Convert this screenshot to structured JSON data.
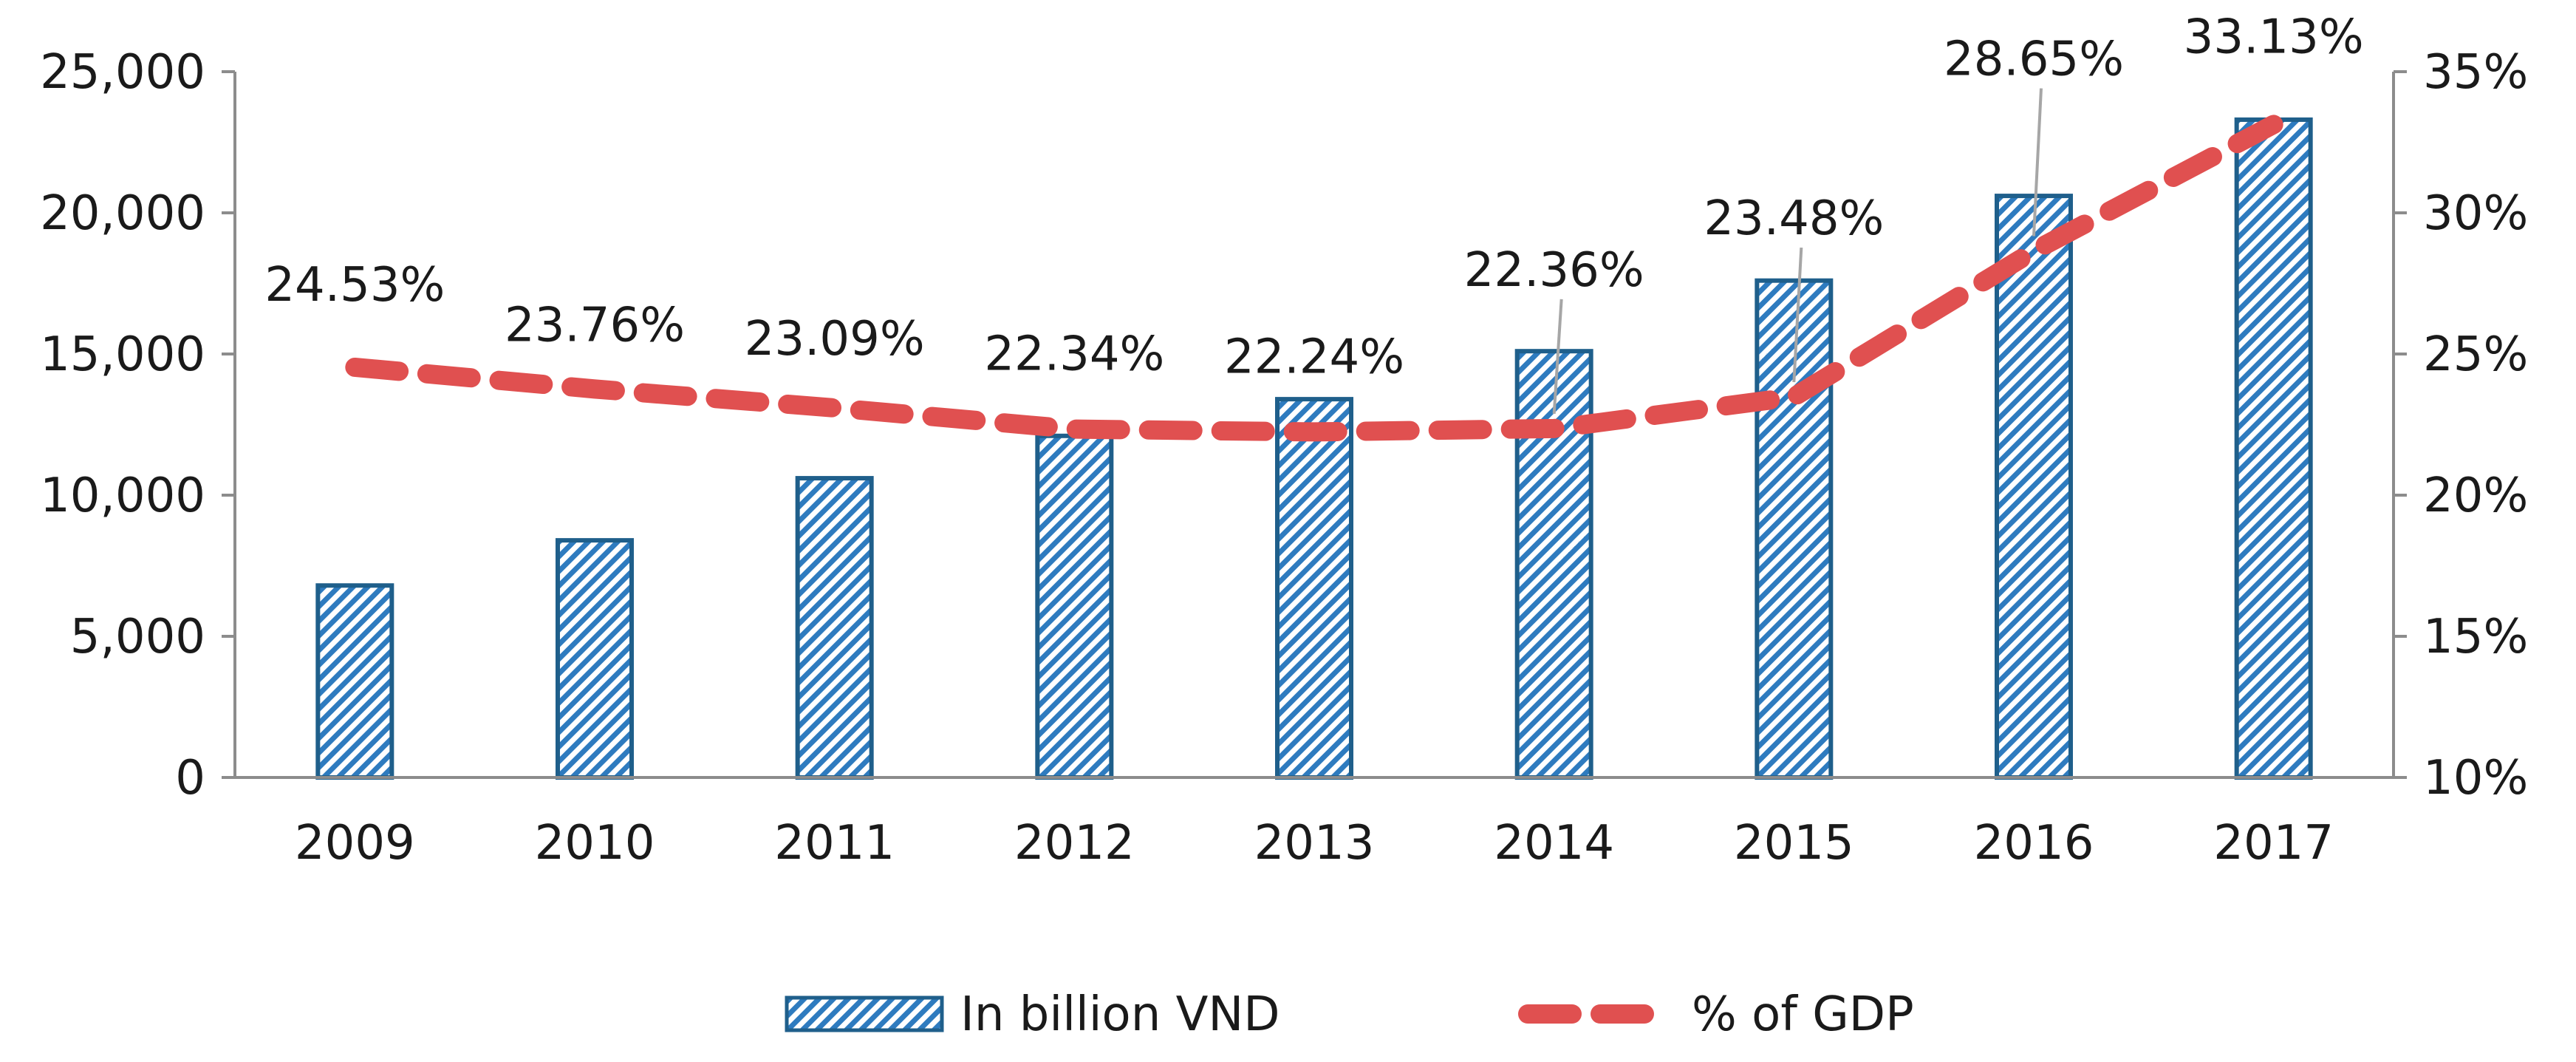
{
  "chart_data": {
    "type": "bar+line",
    "categories": [
      "2009",
      "2010",
      "2011",
      "2012",
      "2013",
      "2014",
      "2015",
      "2016",
      "2017"
    ],
    "series": [
      {
        "name": "In billion VND",
        "type": "bar",
        "axis": "left",
        "values": [
          6800,
          8400,
          10600,
          12100,
          13400,
          15100,
          17600,
          20600,
          23300
        ]
      },
      {
        "name": "% of GDP",
        "type": "line",
        "axis": "right",
        "values": [
          24.53,
          23.76,
          23.09,
          22.34,
          22.24,
          22.36,
          23.48,
          28.65,
          33.13
        ],
        "data_labels": [
          "24.53%",
          "23.76%",
          "23.09%",
          "22.34%",
          "22.24%",
          "22.36%",
          "23.48%",
          "28.65%",
          "33.13%"
        ]
      }
    ],
    "y_left": {
      "ylim": [
        0,
        25000
      ],
      "ticks": [
        0,
        5000,
        10000,
        15000,
        20000,
        25000
      ],
      "tick_labels": [
        "0",
        "5,000",
        "10,000",
        "15,000",
        "20,000",
        "25,000"
      ]
    },
    "y_right": {
      "ylim": [
        10,
        35
      ],
      "ticks": [
        10,
        15,
        20,
        25,
        30,
        35
      ],
      "tick_labels": [
        "10%",
        "15%",
        "20%",
        "25%",
        "30%",
        "35%"
      ]
    },
    "legend": {
      "position": "bottom",
      "entries": [
        "In billion VND",
        "% of GDP"
      ]
    },
    "colors": {
      "bar_stroke": "#1f5f8b",
      "bar_hatch": "#2e7bbf",
      "line": "#e05050",
      "axis": "#8c8c8c",
      "leader": "#a6a6a6"
    },
    "title": "",
    "xlabel": "",
    "ylabel": "",
    "grid": false
  }
}
